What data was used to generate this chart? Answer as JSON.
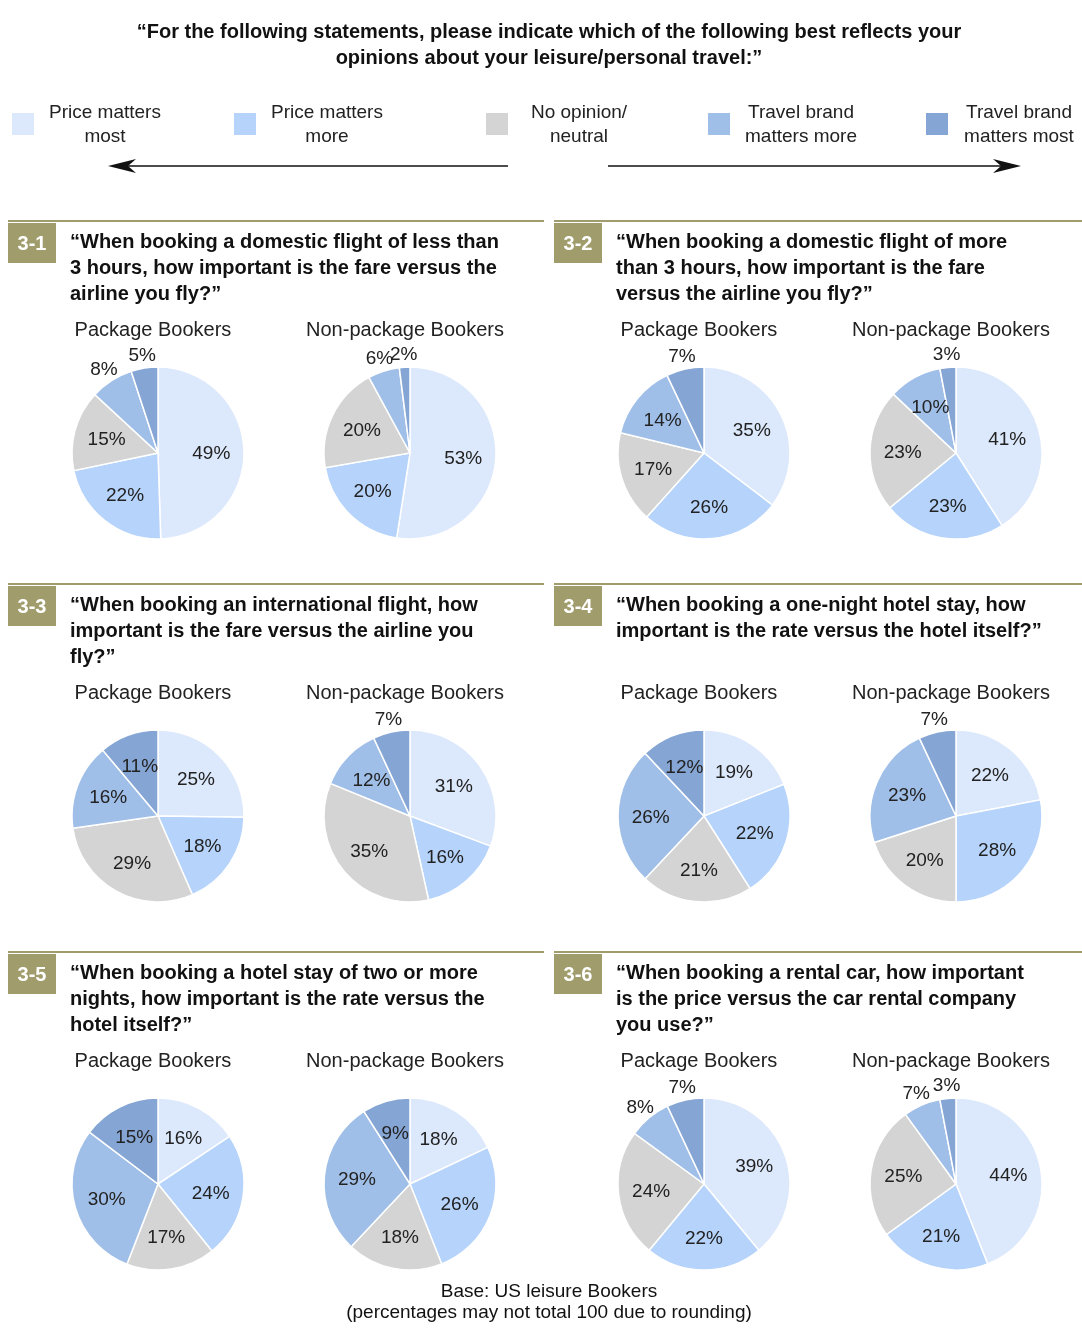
{
  "chart_data": [
    {
      "type": "other",
      "title": "“For the following statements, please indicate which of the following best reflects your opinions about your leisure/personal travel:”"
    },
    {
      "type": "pie",
      "title": "Package Bookers",
      "subtitle": "“When booking a domestic flight of less than 3 hours, how important is the fare versus the airline you fly?”",
      "annotations": [
        "3-1"
      ],
      "legend": "top",
      "categories": [
        "Price matters most",
        "Price matters more",
        "No opinion/ neutral",
        "Travel brand matters more",
        "Travel brand matters most"
      ],
      "values": [
        49,
        22,
        15,
        8,
        5
      ],
      "value_labels": [
        "49%",
        "22%",
        "15%",
        "8%",
        "5%"
      ],
      "colors": [
        "#dce8fb",
        "#b5d3fb",
        "#d4d4d4",
        "#a0bfe8",
        "#85a5d4"
      ]
    },
    {
      "type": "pie",
      "title": "Non-package Bookers",
      "categories": [
        null,
        null,
        null,
        null,
        null
      ],
      "values": [
        53,
        20,
        20,
        6,
        2
      ],
      "value_labels": [
        "53%",
        "20%",
        "20%",
        "6%",
        "2%"
      ],
      "colors": [
        "#dce8fb",
        "#b5d3fb",
        "#d4d4d4",
        "#a0bfe8",
        "#85a5d4"
      ]
    },
    {
      "type": "pie",
      "title": "Package Bookers",
      "subtitle": "“When booking a domestic flight of more than 3 hours, how important is the fare versus the airline you fly?”",
      "annotations": [
        "3-2"
      ],
      "categories": [
        null,
        null,
        null,
        null,
        null
      ],
      "values": [
        35,
        26,
        17,
        14,
        7
      ],
      "value_labels": [
        "35%",
        "26%",
        "17%",
        "14%",
        "7%"
      ],
      "colors": [
        "#dce8fb",
        "#b5d3fb",
        "#d4d4d4",
        "#a0bfe8",
        "#85a5d4"
      ]
    },
    {
      "type": "pie",
      "title": "Non-package Bookers",
      "categories": [
        null,
        null,
        null,
        null,
        null
      ],
      "values": [
        41,
        23,
        23,
        10,
        3
      ],
      "value_labels": [
        "41%",
        "23%",
        "23%",
        "10%",
        "3%"
      ],
      "colors": [
        "#dce8fb",
        "#b5d3fb",
        "#d4d4d4",
        "#a0bfe8",
        "#85a5d4"
      ]
    },
    {
      "type": "pie",
      "title": "Package Bookers",
      "subtitle": "“When booking an international flight, how important is the fare versus the airline you fly?”",
      "annotations": [
        "3-3"
      ],
      "categories": [
        null,
        null,
        null,
        null,
        null
      ],
      "values": [
        25,
        18,
        29,
        16,
        11
      ],
      "value_labels": [
        "25%",
        "18%",
        "29%",
        "16%",
        "11%"
      ],
      "colors": [
        "#dce8fb",
        "#b5d3fb",
        "#d4d4d4",
        "#a0bfe8",
        "#85a5d4"
      ]
    },
    {
      "type": "pie",
      "title": "Non-package Bookers",
      "categories": [
        null,
        null,
        null,
        null,
        null
      ],
      "values": [
        31,
        16,
        35,
        12,
        7
      ],
      "value_labels": [
        "31%",
        "16%",
        "35%",
        "12%",
        "7%"
      ],
      "colors": [
        "#dce8fb",
        "#b5d3fb",
        "#d4d4d4",
        "#a0bfe8",
        "#85a5d4"
      ]
    },
    {
      "type": "pie",
      "title": "Package Bookers",
      "subtitle": "“When booking a one-night hotel stay, how important is the rate versus the hotel itself?”",
      "annotations": [
        "3-4"
      ],
      "categories": [
        null,
        null,
        null,
        null,
        null
      ],
      "values": [
        19,
        22,
        21,
        26,
        12
      ],
      "value_labels": [
        "19%",
        "22%",
        "21%",
        "26%",
        "12%"
      ],
      "colors": [
        "#dce8fb",
        "#b5d3fb",
        "#d4d4d4",
        "#a0bfe8",
        "#85a5d4"
      ]
    },
    {
      "type": "pie",
      "title": "Non-package Bookers",
      "categories": [
        null,
        null,
        null,
        null,
        null
      ],
      "values": [
        22,
        28,
        20,
        23,
        7
      ],
      "value_labels": [
        "22%",
        "28%",
        "20%",
        "23%",
        "7%"
      ],
      "colors": [
        "#dce8fb",
        "#b5d3fb",
        "#d4d4d4",
        "#a0bfe8",
        "#85a5d4"
      ]
    },
    {
      "type": "pie",
      "title": "Package Bookers",
      "subtitle": "“When booking a hotel stay of two or more nights, how important is the rate versus the hotel itself?”",
      "annotations": [
        "3-5"
      ],
      "categories": [
        null,
        null,
        null,
        null,
        null
      ],
      "values": [
        16,
        24,
        17,
        30,
        15
      ],
      "value_labels": [
        "16%",
        "24%",
        "17%",
        "30%",
        "15%"
      ],
      "colors": [
        "#dce8fb",
        "#b5d3fb",
        "#d4d4d4",
        "#a0bfe8",
        "#85a5d4"
      ]
    },
    {
      "type": "pie",
      "title": "Non-package Bookers",
      "categories": [
        null,
        null,
        null,
        null,
        null
      ],
      "values": [
        18,
        26,
        18,
        29,
        9
      ],
      "value_labels": [
        "18%",
        "26%",
        "18%",
        "29%",
        "9%"
      ],
      "colors": [
        "#dce8fb",
        "#b5d3fb",
        "#d4d4d4",
        "#a0bfe8",
        "#85a5d4"
      ]
    },
    {
      "type": "pie",
      "title": "Package Bookers",
      "subtitle": "“When booking a rental car, how important is the price versus the car rental company you use?”",
      "annotations": [
        "3-6"
      ],
      "categories": [
        null,
        null,
        null,
        null,
        null
      ],
      "values": [
        39,
        22,
        24,
        8,
        7
      ],
      "value_labels": [
        "39%",
        "22%",
        "24%",
        "8%",
        "7%"
      ],
      "colors": [
        "#dce8fb",
        "#b5d3fb",
        "#d4d4d4",
        "#a0bfe8",
        "#85a5d4"
      ]
    },
    {
      "type": "pie",
      "title": "Non-package Bookers",
      "categories": [
        null,
        null,
        null,
        null,
        null
      ],
      "values": [
        44,
        21,
        25,
        7,
        3
      ],
      "value_labels": [
        "44%",
        "21%",
        "25%",
        "7%",
        "3%"
      ],
      "colors": [
        "#dce8fb",
        "#b5d3fb",
        "#d4d4d4",
        "#a0bfe8",
        "#85a5d4"
      ]
    },
    {
      "type": "other",
      "annotations": [
        "Base: US leisure Bookers",
        "(percentages may not total 100 due to rounding)"
      ]
    }
  ]
}
